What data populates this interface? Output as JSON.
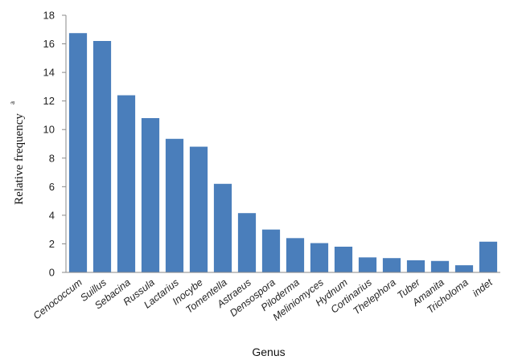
{
  "chart_data": {
    "type": "bar",
    "xlabel": "Genus",
    "ylabel": "Relative frequency",
    "ylabel_superscript": "a",
    "ylim": [
      0,
      18
    ],
    "yticks": [
      0,
      2,
      4,
      6,
      8,
      10,
      12,
      14,
      16,
      18
    ],
    "grid": false,
    "bar_color": "#4a7ebb",
    "categories": [
      "Cenococcum",
      "Suillus",
      "Sebacina",
      "Russula",
      "Lactarius",
      "Inocybe",
      "Tomentella",
      "Astraeus",
      "Densospora",
      "Piloderma",
      "Meliniomyces",
      "Hydnum",
      "Cortinarius",
      "Thelephora",
      "Tuber",
      "Amanita",
      "Tricholoma",
      "indet"
    ],
    "values": [
      16.75,
      16.2,
      12.4,
      10.8,
      9.35,
      8.8,
      6.2,
      4.15,
      3.0,
      2.4,
      2.05,
      1.8,
      1.05,
      1.0,
      0.85,
      0.8,
      0.5,
      2.15
    ]
  }
}
